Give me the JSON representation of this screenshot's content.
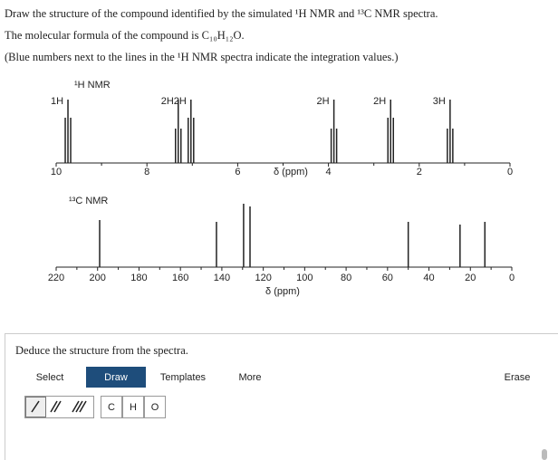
{
  "question": {
    "line1": "Draw the structure of the compound identified by the simulated ¹H NMR and ¹³C NMR spectra.",
    "line2": "The molecular formula of the compound is C₁₀H₁₂O.",
    "line3": "(Blue numbers next to the lines in the ¹H NMR spectra indicate the integration values.)"
  },
  "h_nmr": {
    "label": "¹H NMR",
    "axis_label": "δ (ppm)",
    "xlim": [
      10,
      0
    ],
    "xticks": [
      10,
      8,
      6,
      4,
      2,
      0
    ],
    "peaks": [
      {
        "shift": 9.74,
        "integration": "1H"
      },
      {
        "shift": 7.31,
        "integration": "2H"
      },
      {
        "shift": 7.03,
        "integration": "2H"
      },
      {
        "shift": 3.88,
        "integration": "2H"
      },
      {
        "shift": 2.63,
        "integration": "2H"
      },
      {
        "shift": 1.32,
        "integration": "3H"
      }
    ]
  },
  "c_nmr": {
    "label": "¹³C NMR",
    "axis_label": "δ (ppm)",
    "xlim": [
      220,
      0
    ],
    "xticks": [
      220,
      200,
      180,
      160,
      140,
      120,
      100,
      80,
      60,
      40,
      20,
      0
    ],
    "peaks": [
      199,
      142.6,
      129.5,
      126.4,
      50,
      25,
      13
    ]
  },
  "editor": {
    "prompt": "Deduce the structure from the spectra.",
    "tabs": [
      "Select",
      "Draw",
      "Templates",
      "More"
    ],
    "erase": "Erase",
    "atoms": [
      "C",
      "H",
      "O"
    ]
  }
}
